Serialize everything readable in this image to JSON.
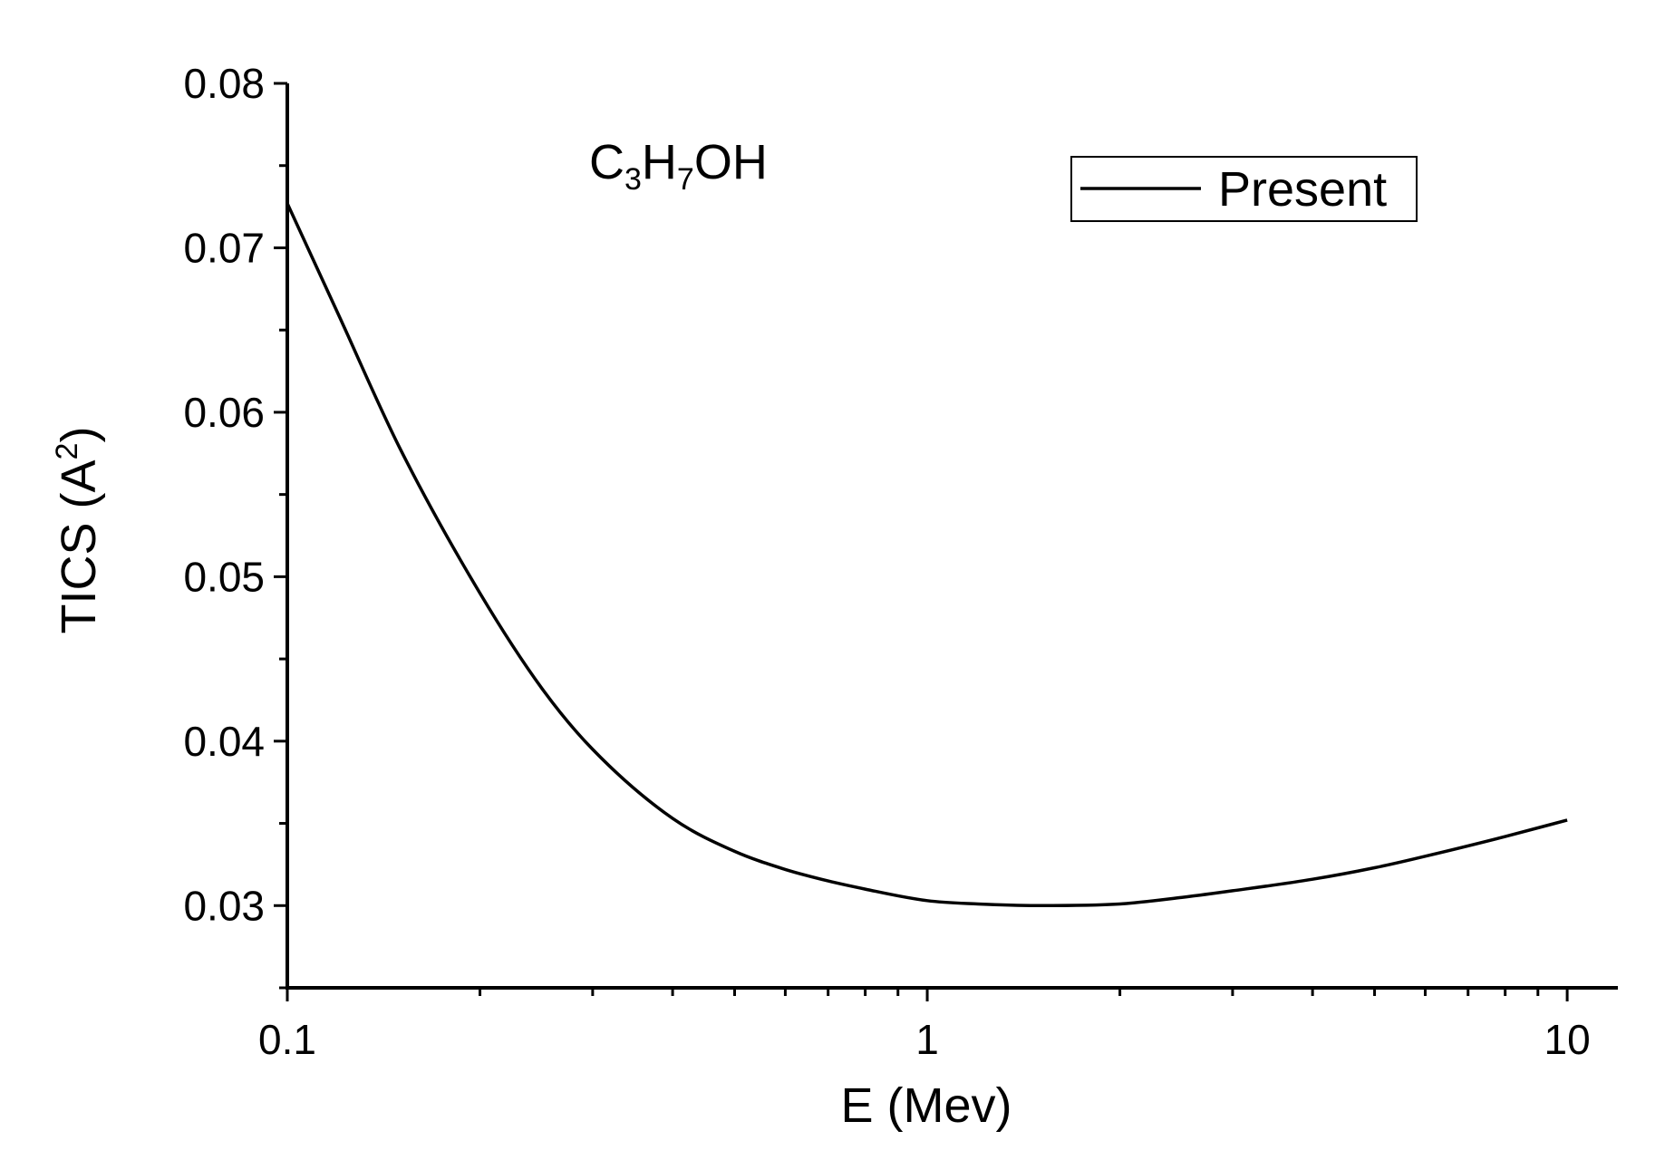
{
  "chart_data": {
    "type": "line",
    "xlabel": "E (Mev)",
    "ylabel": "TICS (A",
    "ylabel_sup": "2",
    "ylabel_close": ")",
    "x_scale": "log",
    "xlim": [
      0.1,
      12
    ],
    "ylim": [
      0.025,
      0.08
    ],
    "x_ticks": [
      "0.1",
      "1",
      "10"
    ],
    "y_ticks": [
      "0.03",
      "0.04",
      "0.05",
      "0.06",
      "0.07",
      "0.08"
    ],
    "annotation": {
      "base": "C",
      "sub1": "3",
      "mid": "H",
      "sub2": "7",
      "tail": "OH"
    },
    "legend_position": "top-right",
    "grid": false,
    "series": [
      {
        "name": "Present",
        "color": "#000000",
        "x": [
          0.1,
          0.12,
          0.15,
          0.2,
          0.25,
          0.3,
          0.4,
          0.5,
          0.6,
          0.7,
          0.8,
          1.0,
          1.2,
          1.5,
          2.0,
          2.5,
          3.0,
          4.0,
          5.0,
          6.0,
          8.0,
          10.0
        ],
        "y": [
          0.0727,
          0.066,
          0.0578,
          0.049,
          0.0432,
          0.0395,
          0.0353,
          0.0333,
          0.0322,
          0.0315,
          0.031,
          0.0303,
          0.0301,
          0.03,
          0.0301,
          0.0305,
          0.0309,
          0.0316,
          0.0323,
          0.033,
          0.0342,
          0.0352
        ]
      }
    ]
  }
}
